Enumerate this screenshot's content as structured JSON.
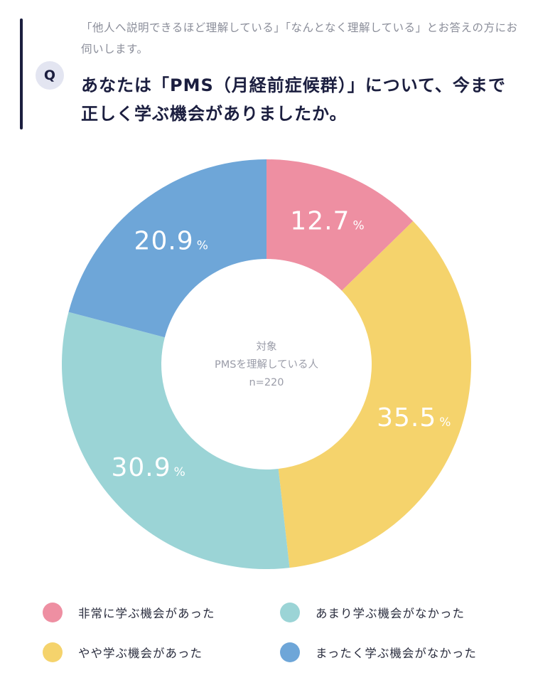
{
  "header": {
    "note": "「他人へ説明できるほど理解している」「なんとなく理解している」とお答えの方にお伺いします。",
    "badge": "Q",
    "question": "あなたは「PMS（月経前症候群）」について、今まで正しく学ぶ機会がありましたか。"
  },
  "chart_data": {
    "type": "pie",
    "donut": true,
    "center_text": [
      "対象",
      "PMSを理解している人",
      "n=220"
    ],
    "unit": "%",
    "categories": [
      "非常に学ぶ機会があった",
      "やや学ぶ機会があった",
      "あまり学ぶ機会がなかった",
      "まったく学ぶ機会がなかった"
    ],
    "values": [
      12.7,
      35.5,
      30.9,
      20.9
    ],
    "labels": [
      "12.7",
      "35.5",
      "30.9",
      "20.9"
    ],
    "colors": [
      "#ee8fa2",
      "#f5d36c",
      "#9bd4d6",
      "#6ea6d8"
    ],
    "start": "top",
    "direction": "clockwise",
    "legend_position": "bottom"
  },
  "legend": {
    "items": [
      {
        "label": "非常に学ぶ機会があった",
        "color": "#ee8fa2"
      },
      {
        "label": "あまり学ぶ機会がなかった",
        "color": "#9bd4d6"
      },
      {
        "label": "やや学ぶ機会があった",
        "color": "#f5d36c"
      },
      {
        "label": "まったく学ぶ機会がなかった",
        "color": "#6ea6d8"
      }
    ]
  }
}
